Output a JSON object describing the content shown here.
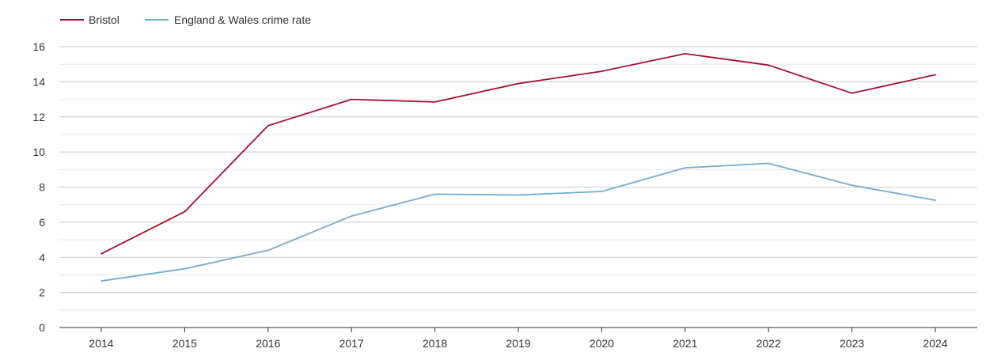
{
  "chart_data": {
    "type": "line",
    "x": [
      "2014",
      "2015",
      "2016",
      "2017",
      "2018",
      "2019",
      "2020",
      "2021",
      "2022",
      "2023",
      "2024"
    ],
    "series": [
      {
        "name": "Bristol",
        "color": "#a50f34",
        "values": [
          4.2,
          6.6,
          11.5,
          13.0,
          12.85,
          13.9,
          14.6,
          15.6,
          14.95,
          13.35,
          14.4
        ]
      },
      {
        "name": "England & Wales crime rate",
        "color": "#74acd0",
        "values": [
          2.65,
          3.35,
          4.4,
          6.35,
          7.6,
          7.55,
          7.75,
          9.1,
          9.35,
          8.1,
          7.25
        ]
      }
    ],
    "ylim": [
      0,
      16
    ],
    "yticks": [
      "0",
      "2",
      "4",
      "6",
      "8",
      "10",
      "12",
      "14",
      "16"
    ],
    "grid": true,
    "legend": "top-left",
    "title": "",
    "xlabel": "",
    "ylabel": ""
  }
}
